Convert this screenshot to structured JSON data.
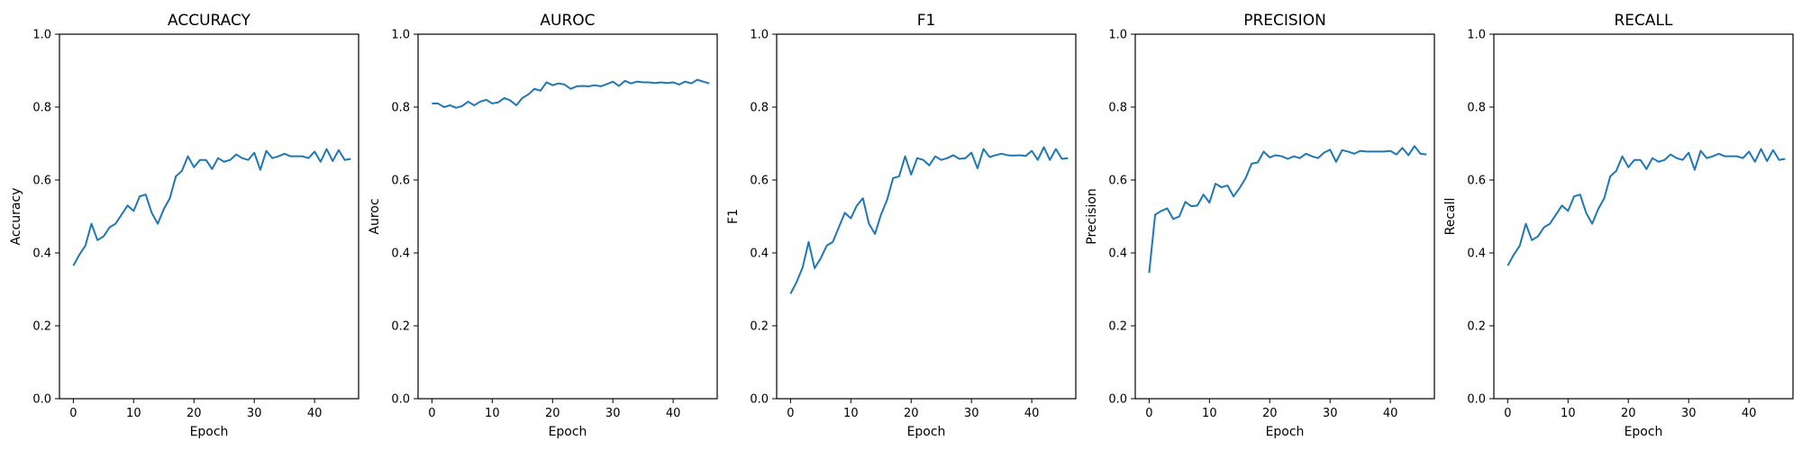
{
  "figure": {
    "line_color": "#1f77b4",
    "axes_color": "#000000",
    "background": "#ffffff"
  },
  "chart_data": [
    {
      "type": "line",
      "title": "ACCURACY",
      "xlabel": "Epoch",
      "ylabel": "Accuracy",
      "xlim": [
        -2.3,
        47.3
      ],
      "ylim": [
        0.0,
        1.0
      ],
      "xticks": [
        0,
        10,
        20,
        30,
        40
      ],
      "yticks": [
        0.0,
        0.2,
        0.4,
        0.6,
        0.8,
        1.0
      ],
      "grid": false,
      "x": [
        0,
        1,
        2,
        3,
        4,
        5,
        6,
        7,
        8,
        9,
        10,
        11,
        12,
        13,
        14,
        15,
        16,
        17,
        18,
        19,
        20,
        21,
        22,
        23,
        24,
        25,
        26,
        27,
        28,
        29,
        30,
        31,
        32,
        33,
        34,
        35,
        36,
        37,
        38,
        39,
        40,
        41,
        42,
        43,
        44,
        45,
        46
      ],
      "values": [
        0.365,
        0.395,
        0.42,
        0.48,
        0.435,
        0.445,
        0.47,
        0.48,
        0.505,
        0.53,
        0.515,
        0.555,
        0.56,
        0.51,
        0.48,
        0.52,
        0.55,
        0.61,
        0.625,
        0.665,
        0.635,
        0.655,
        0.655,
        0.63,
        0.66,
        0.65,
        0.655,
        0.67,
        0.66,
        0.655,
        0.675,
        0.628,
        0.68,
        0.66,
        0.665,
        0.672,
        0.665,
        0.665,
        0.665,
        0.66,
        0.678,
        0.65,
        0.685,
        0.652,
        0.682,
        0.655,
        0.658
      ]
    },
    {
      "type": "line",
      "title": "AUROC",
      "xlabel": "Epoch",
      "ylabel": "Auroc",
      "xlim": [
        -2.3,
        47.3
      ],
      "ylim": [
        0.0,
        1.0
      ],
      "xticks": [
        0,
        10,
        20,
        30,
        40
      ],
      "yticks": [
        0.0,
        0.2,
        0.4,
        0.6,
        0.8,
        1.0
      ],
      "grid": false,
      "x": [
        0,
        1,
        2,
        3,
        4,
        5,
        6,
        7,
        8,
        9,
        10,
        11,
        12,
        13,
        14,
        15,
        16,
        17,
        18,
        19,
        20,
        21,
        22,
        23,
        24,
        25,
        26,
        27,
        28,
        29,
        30,
        31,
        32,
        33,
        34,
        35,
        36,
        37,
        38,
        39,
        40,
        41,
        42,
        43,
        44,
        45,
        46
      ],
      "values": [
        0.81,
        0.81,
        0.8,
        0.805,
        0.798,
        0.803,
        0.815,
        0.805,
        0.815,
        0.82,
        0.81,
        0.813,
        0.825,
        0.818,
        0.805,
        0.825,
        0.835,
        0.85,
        0.845,
        0.868,
        0.86,
        0.865,
        0.862,
        0.85,
        0.857,
        0.858,
        0.857,
        0.86,
        0.857,
        0.863,
        0.87,
        0.858,
        0.872,
        0.865,
        0.87,
        0.868,
        0.868,
        0.866,
        0.868,
        0.866,
        0.868,
        0.862,
        0.87,
        0.865,
        0.875,
        0.87,
        0.865
      ]
    },
    {
      "type": "line",
      "title": "F1",
      "xlabel": "Epoch",
      "ylabel": "F1",
      "xlim": [
        -2.3,
        47.3
      ],
      "ylim": [
        0.0,
        1.0
      ],
      "xticks": [
        0,
        10,
        20,
        30,
        40
      ],
      "yticks": [
        0.0,
        0.2,
        0.4,
        0.6,
        0.8,
        1.0
      ],
      "grid": false,
      "x": [
        0,
        1,
        2,
        3,
        4,
        5,
        6,
        7,
        8,
        9,
        10,
        11,
        12,
        13,
        14,
        15,
        16,
        17,
        18,
        19,
        20,
        21,
        22,
        23,
        24,
        25,
        26,
        27,
        28,
        29,
        30,
        31,
        32,
        33,
        34,
        35,
        36,
        37,
        38,
        39,
        40,
        41,
        42,
        43,
        44,
        45,
        46
      ],
      "values": [
        0.288,
        0.32,
        0.36,
        0.43,
        0.358,
        0.385,
        0.42,
        0.43,
        0.47,
        0.51,
        0.495,
        0.53,
        0.55,
        0.48,
        0.452,
        0.505,
        0.545,
        0.605,
        0.61,
        0.665,
        0.615,
        0.66,
        0.655,
        0.64,
        0.665,
        0.655,
        0.66,
        0.668,
        0.658,
        0.66,
        0.675,
        0.632,
        0.685,
        0.663,
        0.668,
        0.672,
        0.668,
        0.667,
        0.668,
        0.666,
        0.68,
        0.655,
        0.69,
        0.655,
        0.685,
        0.658,
        0.66
      ]
    },
    {
      "type": "line",
      "title": "PRECISION",
      "xlabel": "Epoch",
      "ylabel": "Precision",
      "xlim": [
        -2.3,
        47.3
      ],
      "ylim": [
        0.0,
        1.0
      ],
      "xticks": [
        0,
        10,
        20,
        30,
        40
      ],
      "yticks": [
        0.0,
        0.2,
        0.4,
        0.6,
        0.8,
        1.0
      ],
      "grid": false,
      "x": [
        0,
        1,
        2,
        3,
        4,
        5,
        6,
        7,
        8,
        9,
        10,
        11,
        12,
        13,
        14,
        15,
        16,
        17,
        18,
        19,
        20,
        21,
        22,
        23,
        24,
        25,
        26,
        27,
        28,
        29,
        30,
        31,
        32,
        33,
        34,
        35,
        36,
        37,
        38,
        39,
        40,
        41,
        42,
        43,
        44,
        45,
        46
      ],
      "values": [
        0.345,
        0.505,
        0.515,
        0.522,
        0.493,
        0.5,
        0.54,
        0.528,
        0.53,
        0.56,
        0.538,
        0.59,
        0.58,
        0.585,
        0.555,
        0.578,
        0.605,
        0.645,
        0.648,
        0.678,
        0.662,
        0.668,
        0.665,
        0.658,
        0.665,
        0.66,
        0.672,
        0.665,
        0.66,
        0.675,
        0.683,
        0.65,
        0.682,
        0.678,
        0.672,
        0.68,
        0.678,
        0.678,
        0.678,
        0.678,
        0.68,
        0.67,
        0.688,
        0.668,
        0.693,
        0.672,
        0.67
      ]
    },
    {
      "type": "line",
      "title": "RECALL",
      "xlabel": "Epoch",
      "ylabel": "Recall",
      "xlim": [
        -2.3,
        47.3
      ],
      "ylim": [
        0.0,
        1.0
      ],
      "xticks": [
        0,
        10,
        20,
        30,
        40
      ],
      "yticks": [
        0.0,
        0.2,
        0.4,
        0.6,
        0.8,
        1.0
      ],
      "grid": false,
      "x": [
        0,
        1,
        2,
        3,
        4,
        5,
        6,
        7,
        8,
        9,
        10,
        11,
        12,
        13,
        14,
        15,
        16,
        17,
        18,
        19,
        20,
        21,
        22,
        23,
        24,
        25,
        26,
        27,
        28,
        29,
        30,
        31,
        32,
        33,
        34,
        35,
        36,
        37,
        38,
        39,
        40,
        41,
        42,
        43,
        44,
        45,
        46
      ],
      "values": [
        0.365,
        0.395,
        0.42,
        0.48,
        0.435,
        0.445,
        0.47,
        0.48,
        0.505,
        0.53,
        0.515,
        0.555,
        0.56,
        0.51,
        0.48,
        0.52,
        0.55,
        0.61,
        0.625,
        0.665,
        0.635,
        0.655,
        0.655,
        0.63,
        0.66,
        0.65,
        0.655,
        0.67,
        0.66,
        0.655,
        0.675,
        0.628,
        0.68,
        0.66,
        0.665,
        0.672,
        0.665,
        0.665,
        0.665,
        0.66,
        0.678,
        0.65,
        0.685,
        0.652,
        0.682,
        0.655,
        0.658
      ]
    }
  ]
}
